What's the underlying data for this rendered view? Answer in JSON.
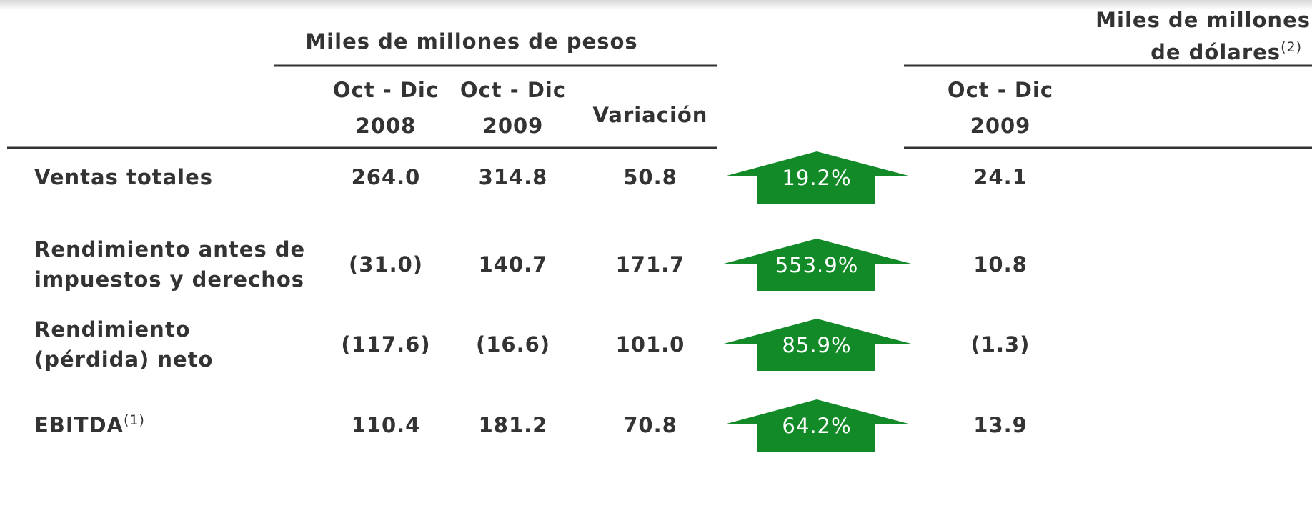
{
  "header": {
    "pesos_title": "Miles de millones de pesos",
    "dollars_title": [
      "Miles de millones",
      "de dólares"
    ],
    "dollars_note": "(2)"
  },
  "columns": [
    {
      "line1": "Oct - Dic",
      "line2": "2008"
    },
    {
      "line1": "Oct - Dic",
      "line2": "2009"
    },
    {
      "line1": "Variación"
    },
    {
      "line1": "Oct - Dic",
      "line2": "2009"
    }
  ],
  "rows": [
    {
      "label": [
        "Ventas totales"
      ],
      "values": [
        "264.0",
        "314.8",
        "50.8"
      ],
      "change": "19.2%",
      "usd": "24.1"
    },
    {
      "label": [
        "Rendimiento antes de",
        "impuestos y derechos"
      ],
      "values": [
        "(31.0)",
        "140.7",
        "171.7"
      ],
      "change": "553.9%",
      "usd": "10.8"
    },
    {
      "label": [
        "Rendimiento",
        "(pérdida) neto"
      ],
      "values": [
        "(117.6)",
        "(16.6)",
        "101.0"
      ],
      "change": "85.9%",
      "usd": "(1.3)"
    },
    {
      "label": [
        "EBITDA"
      ],
      "note": "(1)",
      "values": [
        "110.4",
        "181.2",
        "70.8"
      ],
      "change": "64.2%",
      "usd": "13.9"
    }
  ]
}
